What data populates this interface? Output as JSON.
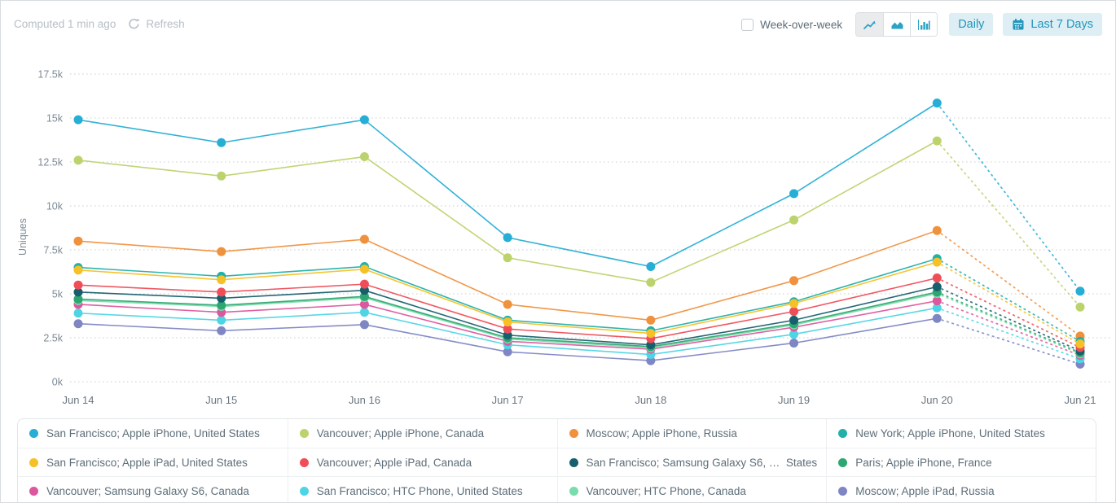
{
  "header": {
    "computed_label": "Computed 1 min ago",
    "refresh_label": "Refresh",
    "week_over_week_label": "Week-over-week",
    "week_over_week_checked": false,
    "chart_type_buttons": [
      "line-chart",
      "area-chart",
      "bar-chart"
    ],
    "chart_type_selected": "line-chart",
    "daily_label": "Daily",
    "date_range_label": "Last 7 Days"
  },
  "colors": {
    "accent_teal": "#2196bc",
    "button_bg": "#ddeef5",
    "muted_text": "#b6bec5",
    "label_text": "#5d6d78",
    "tick_text": "#7e8a93",
    "grid_line": "#c8cdd1"
  },
  "chart_data": {
    "type": "line",
    "title": "",
    "xlabel": "",
    "ylabel": "Uniques",
    "categories": [
      "Jun 14",
      "Jun 15",
      "Jun 16",
      "Jun 17",
      "Jun 18",
      "Jun 19",
      "Jun 20",
      "Jun 21"
    ],
    "yticks": [
      "0k",
      "2.5k",
      "5k",
      "7.5k",
      "10k",
      "12.5k",
      "15k",
      "17.5k"
    ],
    "ylim": [
      0,
      17500
    ],
    "grid": "horizontal-dotted",
    "legend_position": "bottom-table",
    "last_segment_projected_dotted": true,
    "series": [
      {
        "name": "San Francisco; Apple iPhone, United States",
        "color": "#27aed5",
        "values": [
          14900,
          13600,
          14900,
          8200,
          6550,
          10700,
          15850,
          5150
        ]
      },
      {
        "name": "Vancouver; Apple iPhone, Canada",
        "color": "#bcd36d",
        "values": [
          12600,
          11700,
          12800,
          7050,
          5650,
          9200,
          13700,
          4250
        ]
      },
      {
        "name": "Moscow; Apple iPhone, Russia",
        "color": "#f0913d",
        "values": [
          8000,
          7400,
          8100,
          4400,
          3500,
          5750,
          8600,
          2600
        ]
      },
      {
        "name": "New York; Apple iPhone, United States",
        "color": "#21b1a8",
        "values": [
          6500,
          6000,
          6550,
          3500,
          2900,
          4550,
          7000,
          2300
        ]
      },
      {
        "name": "San Francisco; Apple iPad, United States",
        "color": "#f5c126",
        "values": [
          6350,
          5800,
          6400,
          3400,
          2750,
          4450,
          6800,
          2150
        ]
      },
      {
        "name": "Vancouver; Apple iPad, Canada",
        "color": "#ef4e58",
        "values": [
          5500,
          5100,
          5550,
          3000,
          2450,
          4000,
          5900,
          1950
        ]
      },
      {
        "name": "San Francisco; Samsung Galaxy S6, …  States",
        "color": "#185f6d",
        "values": [
          5100,
          4750,
          5200,
          2650,
          2100,
          3500,
          5400,
          1750
        ]
      },
      {
        "name": "Paris; Apple iPhone, France",
        "color": "#2da771",
        "values": [
          4700,
          4350,
          4850,
          2500,
          2000,
          3300,
          5100,
          1650
        ]
      },
      {
        "name": "Vancouver; Samsung Galaxy S6, Canada",
        "color": "#dd579e",
        "values": [
          4400,
          3950,
          4400,
          2300,
          1850,
          3100,
          4600,
          1500
        ]
      },
      {
        "name": "San Francisco; HTC Phone, United States",
        "color": "#4ed5e5",
        "values": [
          3900,
          3500,
          3950,
          2100,
          1550,
          2700,
          4200,
          1300
        ]
      },
      {
        "name": "Vancouver; HTC Phone, Canada",
        "color": "#79dcab",
        "values": [
          4620,
          4280,
          4780,
          2430,
          1930,
          3230,
          5020,
          1580
        ]
      },
      {
        "name": "Moscow; Apple iPad, Russia",
        "color": "#7e86c3",
        "values": [
          3300,
          2900,
          3250,
          1700,
          1200,
          2200,
          3600,
          1000
        ]
      }
    ]
  }
}
